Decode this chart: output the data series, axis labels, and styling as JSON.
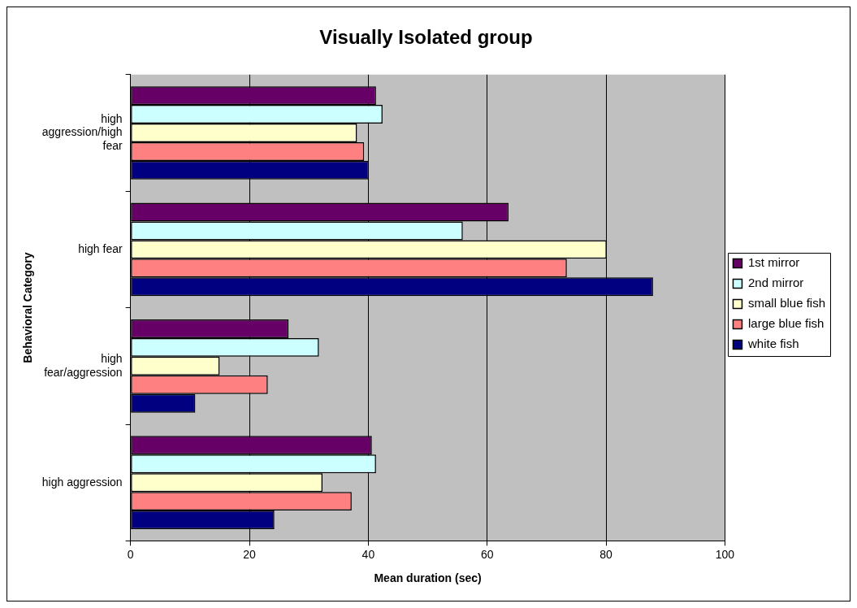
{
  "chart_data": {
    "type": "bar",
    "orientation": "horizontal",
    "title": "Visually Isolated group",
    "xlabel": "Mean duration (sec)",
    "ylabel": "Behavioral Category",
    "categories": [
      "high aggression/high fear",
      "high fear",
      "high fear/aggression",
      "high aggression"
    ],
    "series": [
      {
        "name": "1st mirror",
        "color": "#660066",
        "values": [
          41.3,
          63.6,
          26.6,
          40.6
        ]
      },
      {
        "name": "2nd mirror",
        "color": "#ccffff",
        "values": [
          42.4,
          55.9,
          31.7,
          41.3
        ]
      },
      {
        "name": "small blue fish",
        "color": "#ffffcc",
        "values": [
          38.1,
          80.1,
          15.0,
          32.3
        ]
      },
      {
        "name": "large blue fish",
        "color": "#ff8080",
        "values": [
          39.3,
          73.4,
          23.1,
          37.2
        ]
      },
      {
        "name": "white fish",
        "color": "#000080",
        "values": [
          40.1,
          87.9,
          10.9,
          24.2
        ]
      }
    ],
    "xlim": [
      0,
      100
    ],
    "xticks": [
      0,
      20,
      40,
      60,
      80,
      100
    ],
    "grid": "x",
    "legend": "right"
  }
}
